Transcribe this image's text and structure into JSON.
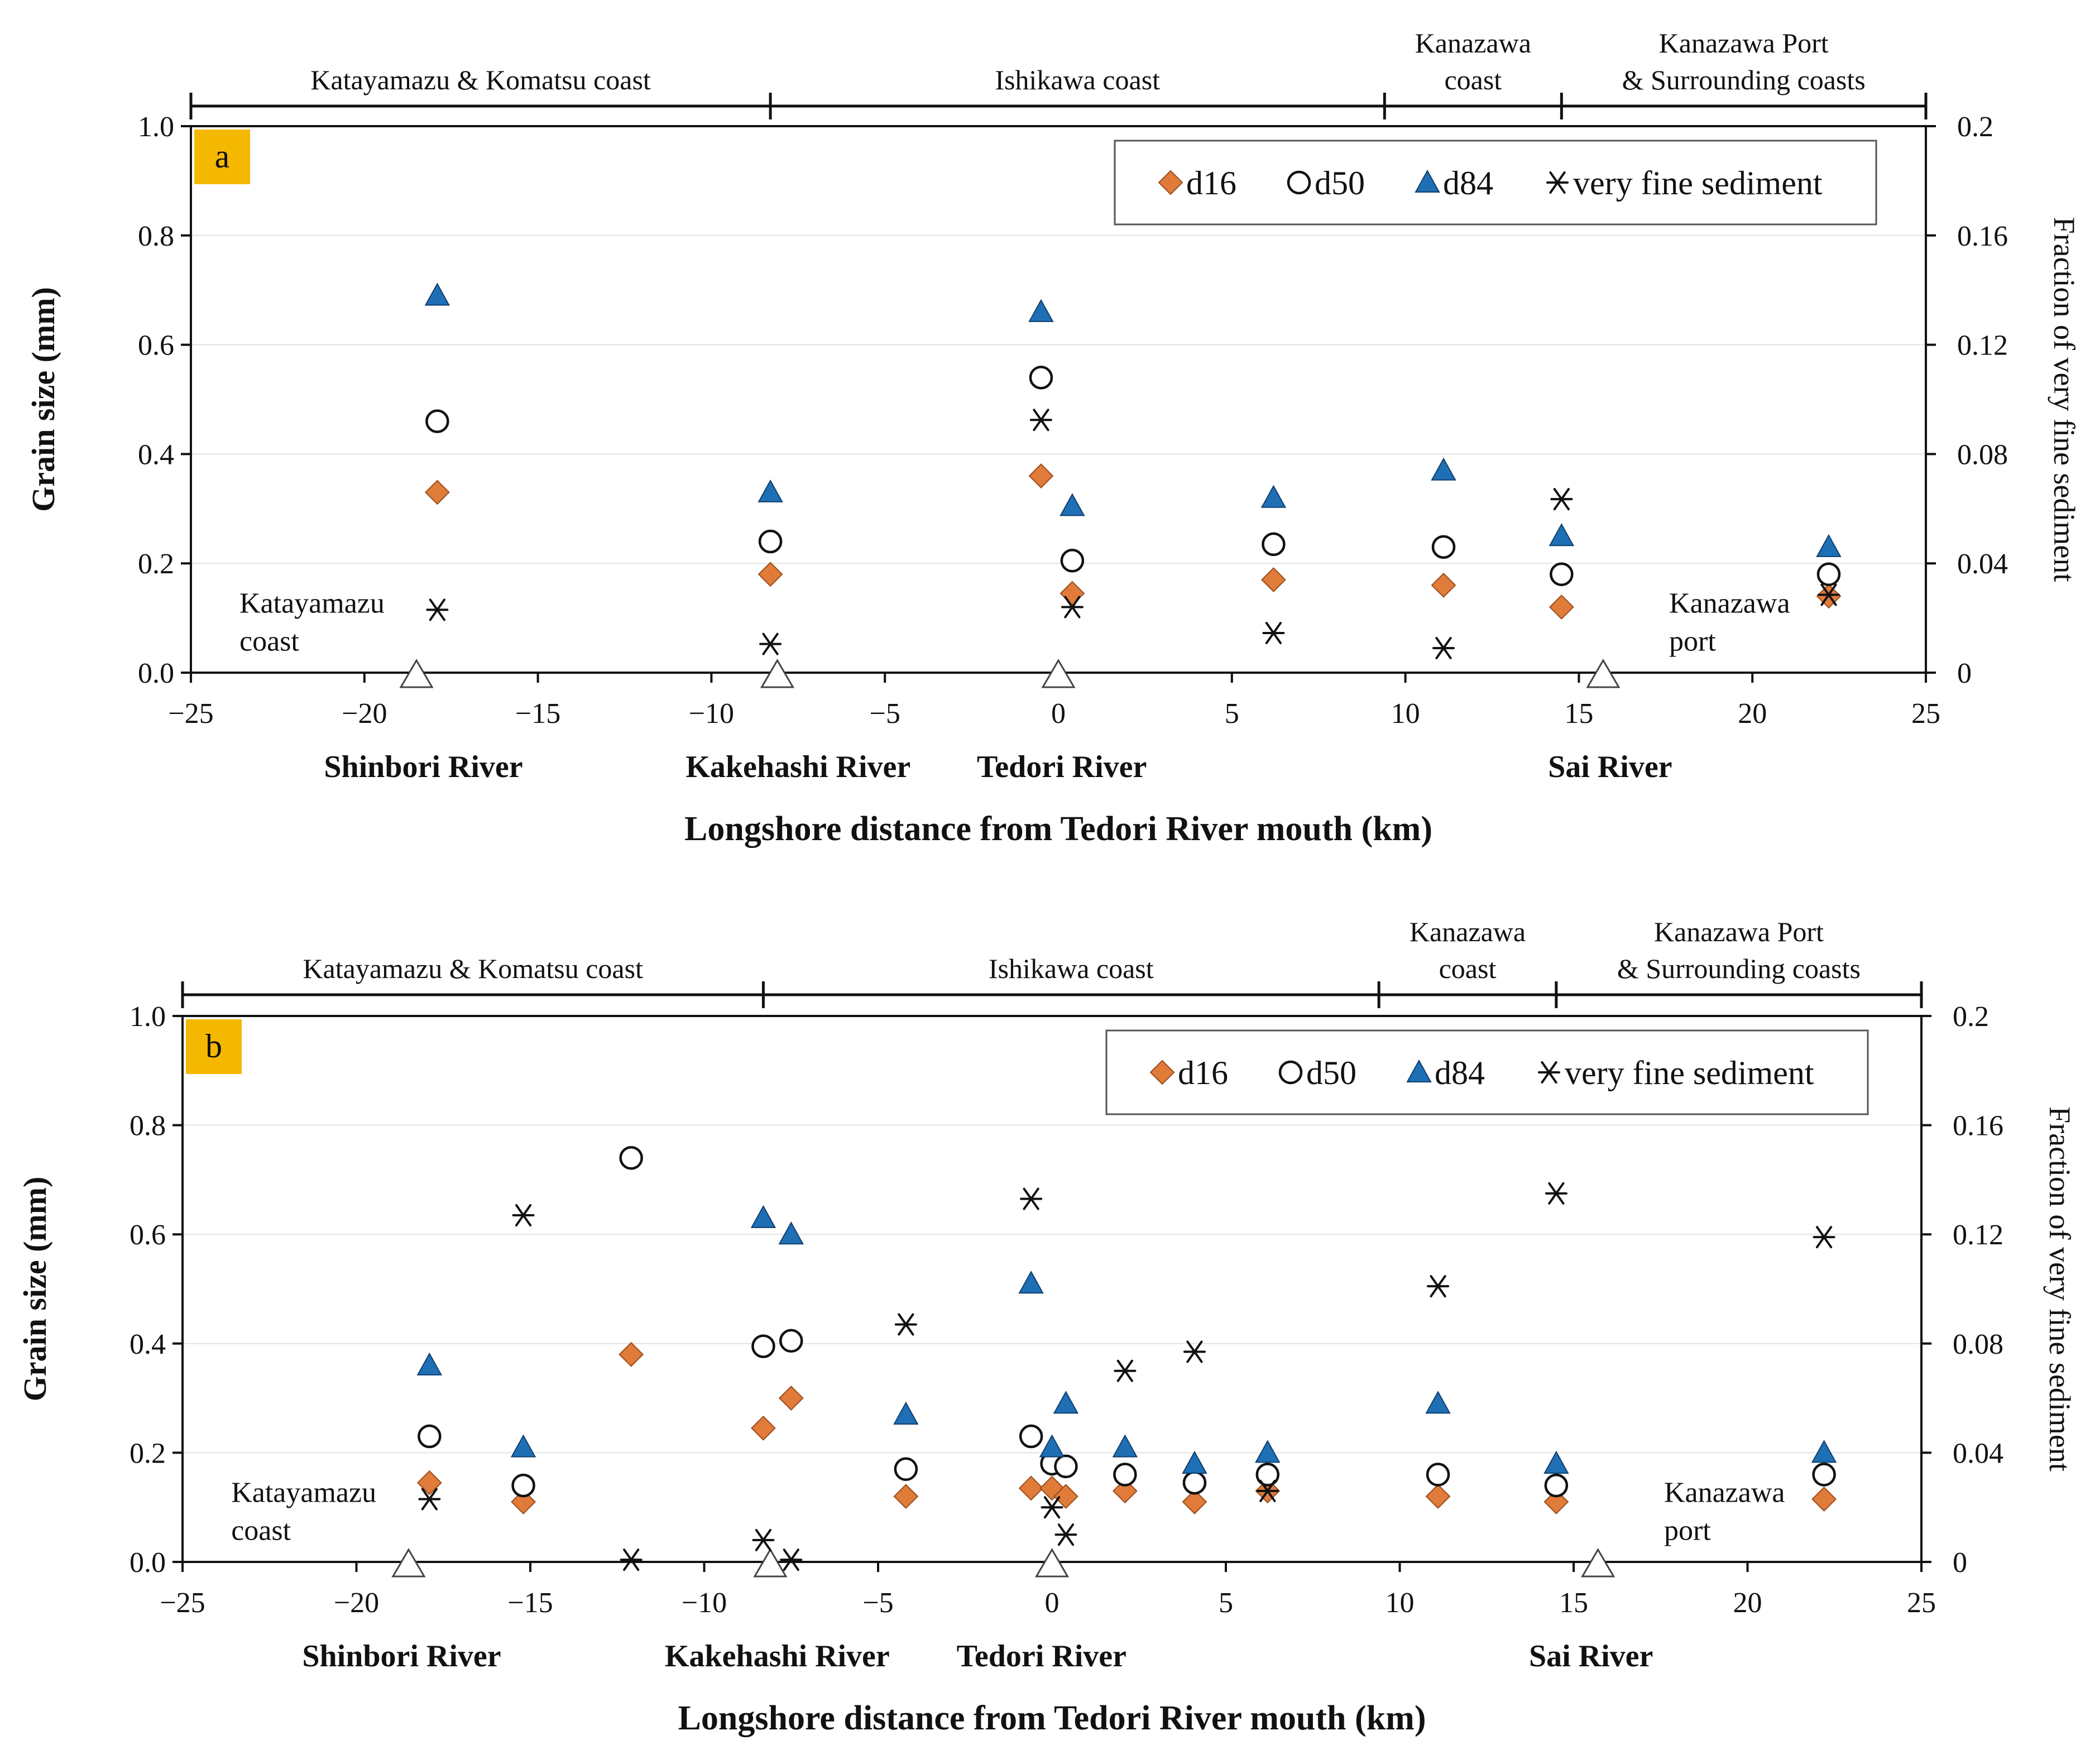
{
  "colors": {
    "d16": "#E07B39",
    "d16_stroke": "#9A4E1E",
    "d84": "#1F6FB5",
    "d84_stroke": "#0F3F6E",
    "panel_label_bg": "#F5B800",
    "axis": "#111111"
  },
  "chart_data": [
    {
      "type": "scatter",
      "panel_label": "a",
      "xlabel": "Longshore distance from Tedori River mouth (km)",
      "ylabel": "Grain size (mm)",
      "y2label": "Fraction of very fine sediment",
      "xlim": [
        -25,
        25
      ],
      "ylim": [
        0,
        1.0
      ],
      "y2lim": [
        0,
        0.2
      ],
      "x_ticks": [
        -25,
        -20,
        -15,
        -10,
        -5,
        0,
        5,
        10,
        15,
        20,
        25
      ],
      "x_tick_labels": [
        "−25",
        "−20",
        "−15",
        "−10",
        "−5",
        "0",
        "5",
        "10",
        "15",
        "20",
        "25"
      ],
      "y_ticks": [
        0,
        0.2,
        0.4,
        0.6,
        0.8,
        1.0
      ],
      "y_tick_labels": [
        "0.0",
        "0.2",
        "0.4",
        "0.6",
        "0.8",
        "1.0"
      ],
      "y2_ticks": [
        0,
        0.04,
        0.08,
        0.12,
        0.16,
        0.2
      ],
      "y2_tick_labels": [
        "0",
        "0.04",
        "0.08",
        "0.12",
        "0.16",
        "0.2"
      ],
      "legend": [
        "d16",
        "d50",
        "d84",
        "very fine sediment"
      ],
      "legend_position": "top-right",
      "regions": [
        {
          "label_lines": [
            "Katayamazu  & Komatsu coast"
          ],
          "from": -25,
          "to": -8.3
        },
        {
          "label_lines": [
            "Ishikawa  coast"
          ],
          "from": -8.3,
          "to": 9.4
        },
        {
          "label_lines": [
            "Kanazawa",
            "coast"
          ],
          "from": 9.4,
          "to": 14.5
        },
        {
          "label_lines": [
            "Kanazawa  Port",
            "& Surrounding coasts"
          ],
          "from": 14.5,
          "to": 25
        }
      ],
      "rivers": [
        {
          "name": "Shinbori  River",
          "x": -18.5,
          "label_x": -18.3
        },
        {
          "name": "Kakehashi  River",
          "x": -8.1,
          "label_x": -7.5
        },
        {
          "name": "Tedori  River",
          "x": 0,
          "label_x": 0.1
        },
        {
          "name": "Sai  River",
          "x": 15.7,
          "label_x": 15.9
        }
      ],
      "annotations": [
        {
          "lines": [
            "Katayamazu",
            "coast"
          ],
          "x": -23.6,
          "y": 0.11
        },
        {
          "lines": [
            "Kanazawa",
            "port"
          ],
          "x": 17.6,
          "y": 0.11
        }
      ],
      "series": [
        {
          "name": "d16",
          "marker": "diamond",
          "x": [
            -17.9,
            -8.3,
            -0.5,
            0.4,
            6.2,
            11.1,
            14.5,
            22.2
          ],
          "y": [
            0.33,
            0.18,
            0.36,
            0.145,
            0.17,
            0.16,
            0.12,
            0.14
          ]
        },
        {
          "name": "d50",
          "marker": "circle",
          "x": [
            -17.9,
            -8.3,
            -0.5,
            0.4,
            6.2,
            11.1,
            14.5,
            22.2
          ],
          "y": [
            0.46,
            0.24,
            0.54,
            0.205,
            0.235,
            0.23,
            0.18,
            0.18
          ]
        },
        {
          "name": "d84",
          "marker": "triangle",
          "x": [
            -17.9,
            -8.3,
            -0.5,
            0.4,
            6.2,
            11.1,
            14.5,
            22.2
          ],
          "y": [
            0.69,
            0.33,
            0.66,
            0.305,
            0.32,
            0.37,
            0.25,
            0.23
          ]
        },
        {
          "name": "very fine sediment",
          "marker": "star",
          "axis": "right",
          "x": [
            -17.9,
            -8.3,
            -0.5,
            0.4,
            6.2,
            11.1,
            14.5,
            22.2
          ],
          "y": [
            0.023,
            0.0105,
            0.0925,
            0.024,
            0.0145,
            0.009,
            0.0635,
            0.0285
          ]
        }
      ]
    },
    {
      "type": "scatter",
      "panel_label": "b",
      "xlabel": "Longshore distance from Tedori River mouth (km)",
      "ylabel": "Grain size (mm)",
      "y2label": "Fraction of very fine sediment",
      "xlim": [
        -25,
        25
      ],
      "ylim": [
        0,
        1.0
      ],
      "y2lim": [
        0,
        0.2
      ],
      "x_ticks": [
        -25,
        -20,
        -15,
        -10,
        -5,
        0,
        5,
        10,
        15,
        20,
        25
      ],
      "x_tick_labels": [
        "−25",
        "−20",
        "−15",
        "−10",
        "−5",
        "0",
        "5",
        "10",
        "15",
        "20",
        "25"
      ],
      "y_ticks": [
        0,
        0.2,
        0.4,
        0.6,
        0.8,
        1.0
      ],
      "y_tick_labels": [
        "0.0",
        "0.2",
        "0.4",
        "0.6",
        "0.8",
        "1.0"
      ],
      "y2_ticks": [
        0,
        0.04,
        0.08,
        0.12,
        0.16,
        0.2
      ],
      "y2_tick_labels": [
        "0",
        "0.04",
        "0.08",
        "0.12",
        "0.16",
        "0.2"
      ],
      "legend": [
        "d16",
        "d50",
        "d84",
        "very fine sediment"
      ],
      "legend_position": "top-right",
      "regions": [
        {
          "label_lines": [
            "Katayamazu  & Komatsu coast"
          ],
          "from": -25,
          "to": -8.3
        },
        {
          "label_lines": [
            "Ishikawa  coast"
          ],
          "from": -8.3,
          "to": 9.4
        },
        {
          "label_lines": [
            "Kanazawa",
            "coast"
          ],
          "from": 9.4,
          "to": 14.5
        },
        {
          "label_lines": [
            "Kanazawa  Port",
            "& Surrounding coasts"
          ],
          "from": 14.5,
          "to": 25
        }
      ],
      "rivers": [
        {
          "name": "Shinbori  River",
          "x": -18.5,
          "label_x": -18.7
        },
        {
          "name": "Kakehashi  River",
          "x": -8.1,
          "label_x": -7.9
        },
        {
          "name": "Tedori  River",
          "x": 0,
          "label_x": -0.3
        },
        {
          "name": "Sai  River",
          "x": 15.7,
          "label_x": 15.5
        }
      ],
      "annotations": [
        {
          "lines": [
            "Katayamazu",
            "coast"
          ],
          "x": -23.6,
          "y": 0.11
        },
        {
          "lines": [
            "Kanazawa",
            "port"
          ],
          "x": 17.6,
          "y": 0.11
        }
      ],
      "series": [
        {
          "name": "d16",
          "marker": "diamond",
          "x": [
            -17.9,
            -15.2,
            -12.1,
            -8.3,
            -7.5,
            -4.2,
            -0.6,
            0,
            0.4,
            2.1,
            4.1,
            6.2,
            11.1,
            14.5,
            22.2
          ],
          "y": [
            0.145,
            0.11,
            0.38,
            0.245,
            0.3,
            0.12,
            0.135,
            0.135,
            0.12,
            0.13,
            0.11,
            0.13,
            0.12,
            0.11,
            0.115
          ]
        },
        {
          "name": "d50",
          "marker": "circle",
          "x": [
            -17.9,
            -15.2,
            -12.1,
            -8.3,
            -7.5,
            -4.2,
            -0.6,
            0,
            0.4,
            2.1,
            4.1,
            6.2,
            11.1,
            14.5,
            22.2
          ],
          "y": [
            0.23,
            0.14,
            0.74,
            0.395,
            0.405,
            0.17,
            0.23,
            0.18,
            0.175,
            0.16,
            0.145,
            0.16,
            0.16,
            0.14,
            0.16
          ]
        },
        {
          "name": "d84",
          "marker": "triangle",
          "x": [
            -17.9,
            -15.2,
            -8.3,
            -7.5,
            -4.2,
            -0.6,
            0,
            0.4,
            2.1,
            4.1,
            6.2,
            11.1,
            14.5,
            22.2
          ],
          "y": [
            0.36,
            0.21,
            0.63,
            0.6,
            0.27,
            0.51,
            0.21,
            0.29,
            0.21,
            0.18,
            0.2,
            0.29,
            0.18,
            0.2
          ]
        },
        {
          "name": "very fine sediment",
          "marker": "star",
          "axis": "right",
          "x": [
            -17.9,
            -15.2,
            -12.1,
            -8.3,
            -7.5,
            -4.2,
            -0.6,
            0,
            0.4,
            2.1,
            4.1,
            6.2,
            11.1,
            14.5,
            22.2
          ],
          "y": [
            0.023,
            0.127,
            0.0008,
            0.008,
            0.0008,
            0.087,
            0.133,
            0.02,
            0.01,
            0.07,
            0.077,
            0.026,
            0.101,
            0.135,
            0.119
          ]
        }
      ]
    }
  ]
}
